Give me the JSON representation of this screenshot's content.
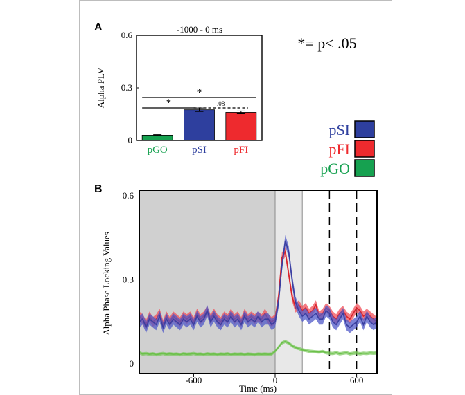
{
  "panels": {
    "a": {
      "label": "A",
      "title": "-1000 - 0 ms",
      "ylabel": "Alpha PLV",
      "note": "*= p< .05",
      "significance": [
        {
          "from": "pGO",
          "to": "pFI",
          "text": "*",
          "style": "solid"
        },
        {
          "from": "pGO",
          "to": "pSI",
          "text": "*",
          "style": "solid"
        },
        {
          "from": "pSI",
          "to": "pFI",
          "text": ".08",
          "style": "dashed"
        }
      ]
    },
    "b": {
      "label": "B"
    }
  },
  "legend": [
    {
      "name": "pSI",
      "color": "#2e3f9e"
    },
    {
      "name": "pFI",
      "color": "#ee2a2e"
    },
    {
      "name": "pGO",
      "color": "#16a150"
    }
  ],
  "colors": {
    "pGO": "#16a150",
    "pSI": "#2e3f9e",
    "pFI": "#ee2a2e",
    "pGO_line": "#6cc04a",
    "prestim_shade": "#d0d0d0",
    "window_shade": "#e8e8e8"
  },
  "chart_data": [
    {
      "type": "bar",
      "title": "-1000 - 0 ms",
      "ylabel": "Alpha PLV",
      "categories": [
        "pGO",
        "pSI",
        "pFI"
      ],
      "values": [
        0.03,
        0.175,
        0.16
      ],
      "errors": [
        0.003,
        0.01,
        0.008
      ],
      "ylim": [
        0,
        0.6
      ],
      "yticks": [
        0,
        0.3,
        0.6
      ],
      "ytick_labels": [
        "0",
        "0.3",
        "0.6"
      ]
    },
    {
      "type": "line",
      "xlabel": "Time (ms)",
      "ylabel": "Alpha Phase Locking Values",
      "xlim": [
        -1000,
        750
      ],
      "ylim": [
        0,
        0.6
      ],
      "xticks": [
        -600,
        0,
        600
      ],
      "xtick_labels": [
        "-600",
        "0",
        "600"
      ],
      "yticks": [
        0,
        0.3,
        0.6
      ],
      "ytick_labels": [
        "0",
        "0.3",
        "0.6"
      ],
      "shaded_regions": [
        {
          "from": -1000,
          "to": 0
        },
        {
          "from": 0,
          "to": 200
        }
      ],
      "vlines": [
        400,
        600
      ],
      "x": [
        -1000,
        -975,
        -950,
        -925,
        -900,
        -875,
        -850,
        -825,
        -800,
        -775,
        -750,
        -725,
        -700,
        -675,
        -650,
        -625,
        -600,
        -575,
        -550,
        -525,
        -500,
        -475,
        -450,
        -425,
        -400,
        -375,
        -350,
        -325,
        -300,
        -275,
        -250,
        -225,
        -200,
        -175,
        -150,
        -125,
        -100,
        -75,
        -50,
        -25,
        0,
        25,
        50,
        75,
        100,
        125,
        150,
        175,
        200,
        225,
        250,
        275,
        300,
        325,
        350,
        375,
        400,
        425,
        450,
        475,
        500,
        525,
        550,
        575,
        600,
        625,
        650,
        675,
        700,
        725,
        750
      ],
      "series": [
        {
          "name": "pSI",
          "values": [
            0.15,
            0.16,
            0.13,
            0.16,
            0.15,
            0.14,
            0.17,
            0.13,
            0.16,
            0.14,
            0.16,
            0.15,
            0.14,
            0.16,
            0.15,
            0.16,
            0.14,
            0.17,
            0.15,
            0.16,
            0.19,
            0.15,
            0.17,
            0.15,
            0.14,
            0.16,
            0.15,
            0.17,
            0.15,
            0.16,
            0.14,
            0.17,
            0.15,
            0.16,
            0.15,
            0.17,
            0.15,
            0.16,
            0.16,
            0.14,
            0.15,
            0.22,
            0.35,
            0.44,
            0.4,
            0.3,
            0.22,
            0.19,
            0.17,
            0.18,
            0.16,
            0.17,
            0.18,
            0.16,
            0.16,
            0.19,
            0.18,
            0.15,
            0.14,
            0.16,
            0.18,
            0.14,
            0.13,
            0.14,
            0.15,
            0.17,
            0.14,
            0.17,
            0.15,
            0.14,
            0.15
          ],
          "band": 0.02
        },
        {
          "name": "pFI",
          "values": [
            0.17,
            0.16,
            0.14,
            0.17,
            0.15,
            0.16,
            0.18,
            0.14,
            0.17,
            0.15,
            0.17,
            0.16,
            0.15,
            0.17,
            0.16,
            0.17,
            0.15,
            0.18,
            0.16,
            0.17,
            0.19,
            0.16,
            0.18,
            0.16,
            0.15,
            0.17,
            0.16,
            0.18,
            0.16,
            0.17,
            0.15,
            0.18,
            0.16,
            0.17,
            0.16,
            0.17,
            0.16,
            0.18,
            0.16,
            0.15,
            0.16,
            0.24,
            0.38,
            0.4,
            0.32,
            0.24,
            0.2,
            0.21,
            0.19,
            0.2,
            0.18,
            0.19,
            0.21,
            0.17,
            0.18,
            0.2,
            0.19,
            0.17,
            0.16,
            0.18,
            0.19,
            0.17,
            0.16,
            0.18,
            0.2,
            0.19,
            0.17,
            0.18,
            0.17,
            0.16,
            0.15
          ],
          "band": 0.017
        },
        {
          "name": "pGO",
          "values": [
            0.04,
            0.035,
            0.037,
            0.034,
            0.036,
            0.033,
            0.035,
            0.037,
            0.034,
            0.036,
            0.034,
            0.035,
            0.033,
            0.036,
            0.034,
            0.035,
            0.037,
            0.034,
            0.035,
            0.033,
            0.036,
            0.034,
            0.035,
            0.033,
            0.035,
            0.034,
            0.036,
            0.033,
            0.035,
            0.034,
            0.035,
            0.033,
            0.035,
            0.034,
            0.033,
            0.035,
            0.034,
            0.035,
            0.034,
            0.035,
            0.045,
            0.06,
            0.075,
            0.08,
            0.074,
            0.065,
            0.058,
            0.055,
            0.05,
            0.048,
            0.045,
            0.044,
            0.043,
            0.042,
            0.044,
            0.04,
            0.038,
            0.037,
            0.04,
            0.036,
            0.038,
            0.04,
            0.036,
            0.038,
            0.039,
            0.036,
            0.038,
            0.037,
            0.039,
            0.038,
            0.039
          ],
          "band": 0.006
        }
      ]
    }
  ]
}
